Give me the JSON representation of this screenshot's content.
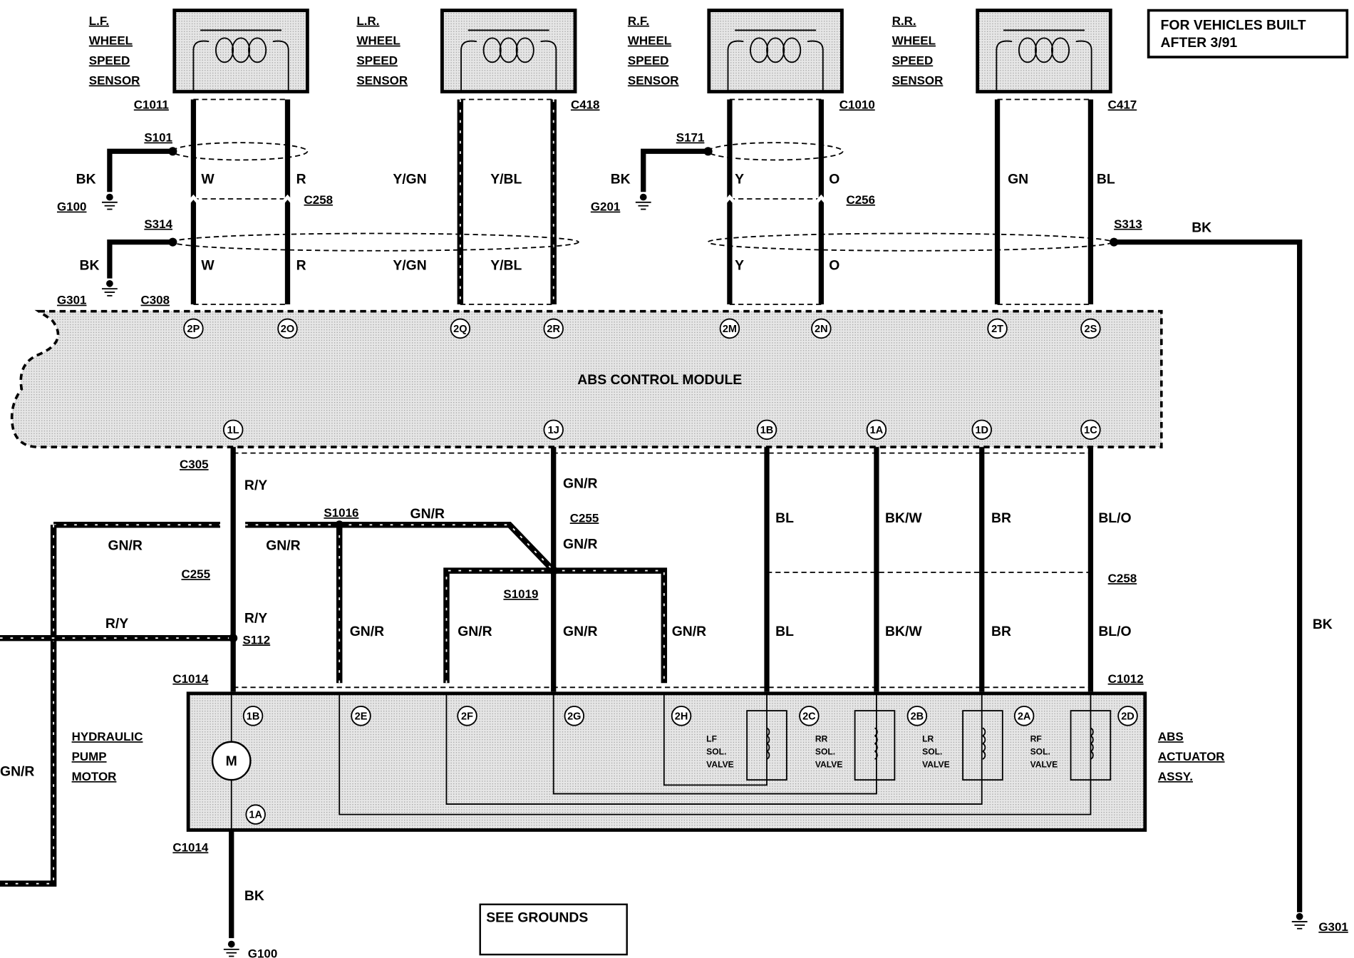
{
  "note": [
    "FOR VEHICLES BUILT",
    "AFTER 3/91"
  ],
  "sensors": [
    [
      "L.F.",
      "WHEEL",
      "SPEED",
      "SENSOR"
    ],
    [
      "L.R.",
      "WHEEL",
      "SPEED",
      "SENSOR"
    ],
    [
      "R.F.",
      "WHEEL",
      "SPEED",
      "SENSOR"
    ],
    [
      "R.R.",
      "WHEEL",
      "SPEED",
      "SENSOR"
    ]
  ],
  "connector_labels": [
    "C1011",
    "C418",
    "C1010",
    "C417",
    "C258",
    "C256",
    "C308",
    "C305",
    "C255",
    "C255",
    "C258",
    "C1014",
    "C1012",
    "C1014"
  ],
  "splice_labels": [
    "S101",
    "S171",
    "S314",
    "S313",
    "S1016",
    "S1019",
    "S112"
  ],
  "ground_labels": [
    "G100",
    "G201",
    "G301",
    "G301",
    "G100"
  ],
  "wire_colors": [
    "W",
    "R",
    "Y/GN",
    "Y/BL",
    "BK",
    "BK",
    "Y",
    "O",
    "GN",
    "BL",
    "BK",
    "W",
    "R",
    "Y/GN",
    "Y/BL",
    "Y",
    "O",
    "BK",
    "R/Y",
    "GN/R",
    "GN/R",
    "GN/R",
    "GN/R",
    "GN/R",
    "BL",
    "BK/W",
    "BR",
    "BL/O",
    "R/Y",
    "R/Y",
    "GN/R",
    "GN/R",
    "GN/R",
    "GN/R",
    "BL",
    "BK/W",
    "BR",
    "BL/O",
    "GN/R",
    "BK",
    "BK"
  ],
  "module": {
    "name": "ABS CONTROL MODULE",
    "pins_top": [
      "2P",
      "2O",
      "2Q",
      "2R",
      "2M",
      "2N",
      "2T",
      "2S"
    ],
    "pins_bottom": [
      "1L",
      "1J",
      "1B",
      "1A",
      "1D",
      "1C"
    ]
  },
  "actuator": {
    "name": [
      "ABS",
      "ACTUATOR",
      "ASSY."
    ],
    "pins": [
      "1B",
      "2E",
      "2F",
      "2G",
      "2H",
      "2C",
      "2B",
      "2A",
      "2D",
      "1A"
    ],
    "motor_label": [
      "HYDRAULIC",
      "PUMP",
      "MOTOR"
    ],
    "motor_symbol": "M",
    "solenoids": [
      [
        "LF",
        "SOL.",
        "VALVE"
      ],
      [
        "RR",
        "SOL.",
        "VALVE"
      ],
      [
        "LR",
        "SOL.",
        "VALVE"
      ],
      [
        "RF",
        "SOL.",
        "VALVE"
      ]
    ]
  },
  "see_grounds": "SEE GROUNDS"
}
